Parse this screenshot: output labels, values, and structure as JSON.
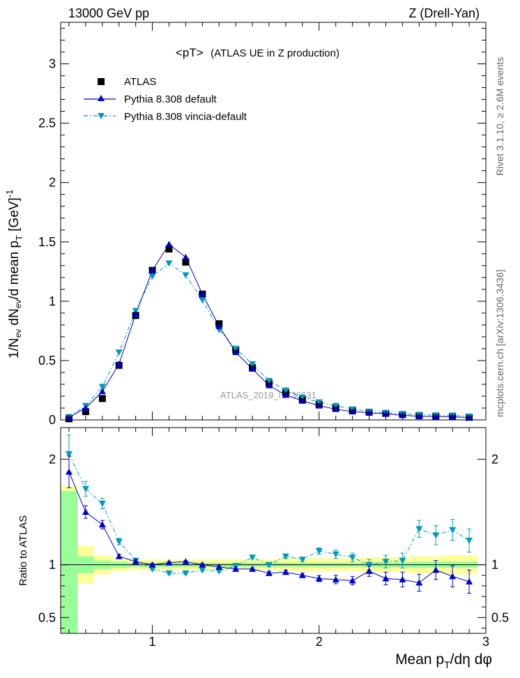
{
  "header": {
    "left": "13000 GeV pp",
    "right": "Z (Drell-Yan)"
  },
  "side_text": {
    "rivet": "Rivet 3.1.10, ≥ 2.6M events",
    "mcplots": "mcplots.cern.ch [arXiv:1306.3436]"
  },
  "watermark": "ATLAS_2019_I1736531",
  "colors": {
    "data": "#000000",
    "default": "#0000cc",
    "vincia": "#0099bb",
    "band_green": "#99ff99",
    "band_yellow": "#ffff99"
  },
  "chart_data": [
    {
      "type": "scatter",
      "title": "<pT> (ATLAS UE in Z production)",
      "title_main": "<pT>",
      "title_sub": "(ATLAS UE in Z production)",
      "ylabel": "1/N_ev dN_ev/d mean p_T [GeV]^-1",
      "ylabel_parts": {
        "a": "1/N",
        "b": "ev",
        "c": " dN",
        "d": "ev",
        "e": "/d mean p",
        "f": "T",
        "g": " [GeV]",
        "h": "-1"
      },
      "xlim": [
        0.45,
        3.0
      ],
      "ylim": [
        0,
        3.35
      ],
      "yticks": [
        0,
        0.5,
        1,
        1.5,
        2,
        2.5,
        3
      ],
      "ytick_labels": [
        "0",
        "0.5",
        "1",
        "1.5",
        "2",
        "2.5",
        "3"
      ],
      "legend_position": "top-left",
      "x": [
        0.5,
        0.6,
        0.7,
        0.8,
        0.9,
        1.0,
        1.1,
        1.2,
        1.3,
        1.4,
        1.5,
        1.6,
        1.7,
        1.8,
        1.9,
        2.0,
        2.1,
        2.2,
        2.3,
        2.4,
        2.5,
        2.6,
        2.7,
        2.8,
        2.9
      ],
      "series": [
        {
          "name": "ATLAS",
          "marker": "square",
          "values": [
            0.01,
            0.07,
            0.18,
            0.46,
            0.88,
            1.26,
            1.44,
            1.33,
            1.06,
            0.81,
            0.59,
            0.44,
            0.31,
            0.23,
            0.17,
            0.13,
            0.1,
            0.08,
            0.065,
            0.055,
            0.045,
            0.035,
            0.03,
            0.028,
            0.022
          ]
        },
        {
          "name": "Pythia 8.308 default",
          "marker": "triangle-up",
          "values": [
            0.02,
            0.1,
            0.24,
            0.47,
            0.89,
            1.26,
            1.48,
            1.37,
            1.06,
            0.79,
            0.57,
            0.43,
            0.29,
            0.21,
            0.16,
            0.12,
            0.09,
            0.07,
            0.06,
            0.05,
            0.04,
            0.03,
            0.028,
            0.026,
            0.02
          ]
        },
        {
          "name": "Pythia 8.308 vincia-default",
          "marker": "triangle-down",
          "values": [
            0.025,
            0.12,
            0.28,
            0.57,
            0.92,
            1.21,
            1.32,
            1.22,
            1.01,
            0.76,
            0.6,
            0.47,
            0.33,
            0.25,
            0.19,
            0.15,
            0.12,
            0.09,
            0.07,
            0.06,
            0.05,
            0.045,
            0.04,
            0.038,
            0.03
          ]
        }
      ]
    },
    {
      "type": "scatter",
      "ylabel": "Ratio to ATLAS",
      "xlabel": "Mean p_T/dη dφ",
      "xlabel_parts": {
        "a": "Mean p",
        "b": "T",
        "c": "/dη dφ"
      },
      "xlim": [
        0.45,
        3.0
      ],
      "ylim": [
        0.35,
        2.3
      ],
      "xticks": [
        1,
        2,
        3
      ],
      "xtick_labels": [
        "1",
        "2",
        "3"
      ],
      "yticks": [
        0.5,
        1,
        2
      ],
      "ytick_labels": [
        "0.5",
        "1",
        "2"
      ],
      "x": [
        0.5,
        0.6,
        0.7,
        0.8,
        0.9,
        1.0,
        1.1,
        1.2,
        1.3,
        1.4,
        1.5,
        1.6,
        1.7,
        1.8,
        1.9,
        2.0,
        2.1,
        2.2,
        2.3,
        2.4,
        2.5,
        2.6,
        2.7,
        2.8,
        2.9
      ],
      "band_green_halfwidth": [
        0.7,
        0.08,
        0.04,
        0.03,
        0.02,
        0.02,
        0.02,
        0.02,
        0.02,
        0.02,
        0.02,
        0.02,
        0.02,
        0.02,
        0.02,
        0.02,
        0.02,
        0.02,
        0.025,
        0.025,
        0.025,
        0.03,
        0.03,
        0.03,
        0.03
      ],
      "band_yellow_halfwidth": [
        0.75,
        0.18,
        0.09,
        0.06,
        0.05,
        0.05,
        0.05,
        0.05,
        0.05,
        0.05,
        0.05,
        0.05,
        0.05,
        0.06,
        0.06,
        0.06,
        0.06,
        0.06,
        0.07,
        0.07,
        0.07,
        0.08,
        0.08,
        0.09,
        0.09
      ],
      "series": [
        {
          "name": "Pythia 8.308 default",
          "marker": "triangle-up",
          "values": [
            1.88,
            1.5,
            1.38,
            1.08,
            1.03,
            1.0,
            1.02,
            1.03,
            1.0,
            0.98,
            0.96,
            0.96,
            0.92,
            0.93,
            0.9,
            0.87,
            0.86,
            0.85,
            0.94,
            0.87,
            0.86,
            0.83,
            0.95,
            0.89,
            0.84
          ],
          "errors": [
            0.15,
            0.06,
            0.04,
            0.02,
            0.02,
            0.01,
            0.01,
            0.01,
            0.01,
            0.01,
            0.01,
            0.01,
            0.02,
            0.02,
            0.02,
            0.03,
            0.04,
            0.04,
            0.05,
            0.06,
            0.07,
            0.08,
            0.09,
            0.1,
            0.11
          ]
        },
        {
          "name": "Pythia 8.308 vincia-default",
          "marker": "triangle-down",
          "values": [
            2.05,
            1.72,
            1.58,
            1.22,
            1.04,
            0.96,
            0.92,
            0.92,
            0.95,
            0.94,
            0.99,
            1.07,
            1.0,
            1.08,
            1.05,
            1.13,
            1.1,
            1.07,
            1.0,
            1.03,
            1.04,
            1.34,
            1.28,
            1.33,
            1.23
          ],
          "errors": [
            0.18,
            0.07,
            0.05,
            0.03,
            0.02,
            0.01,
            0.01,
            0.01,
            0.01,
            0.01,
            0.01,
            0.01,
            0.02,
            0.02,
            0.02,
            0.03,
            0.04,
            0.04,
            0.05,
            0.06,
            0.07,
            0.08,
            0.09,
            0.1,
            0.11
          ]
        }
      ]
    }
  ]
}
